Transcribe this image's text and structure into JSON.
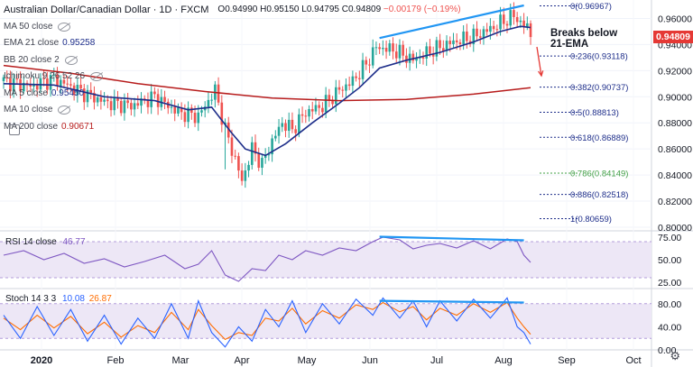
{
  "header": {
    "title": "Australian Dollar/Canadian Dollar · 1D · FXCM",
    "ohlc": "O0.94990 H0.95150 L0.94795 C0.94809",
    "change": "−0.00179 (−0.19%)"
  },
  "legend_rows": [
    {
      "label": "MA 50 close",
      "value": "",
      "color": "#434651",
      "eye": true
    },
    {
      "label": "EMA 21 close",
      "value": "0.95258",
      "color": "#1e2e8a",
      "eye": false
    },
    {
      "label": "BB 20 close 2",
      "value": "",
      "color": "#434651",
      "eye": true
    },
    {
      "label": "Ichimoku 9 26 52 26",
      "value": "",
      "color": "#434651",
      "eye": true
    },
    {
      "label": "MA 5 close",
      "value": "0.95450",
      "color": "#1e2e8a",
      "eye": false
    },
    {
      "label": "MA 10 close",
      "value": "",
      "color": "#434651",
      "eye": true
    },
    {
      "label": "MA 200 close",
      "value": "0.90671",
      "color": "#b71c1c",
      "eye": false
    }
  ],
  "last_price": "0.94809",
  "annotation": "Breaks below\n21-EMA",
  "rsi": {
    "label": "RSI 14 close",
    "value": "46.77"
  },
  "stoch": {
    "label": "Stoch 14 3 3",
    "k": "10.08",
    "d": "26.87"
  },
  "colors": {
    "up": "#26a69a",
    "down": "#ef5350",
    "ema21": "#1e2e8a",
    "ma200": "#b71c1c",
    "trend": "#2196f3",
    "arrow": "#e53935",
    "rsi": "#7e57c2",
    "band": "#ede7f6",
    "stoch_k": "#2962ff",
    "stoch_d": "#ff6d00"
  },
  "chart_data": {
    "type": "candlestick",
    "price_axis": {
      "ticks": [
        "0.96000",
        "0.94000",
        "0.92000",
        "0.90000",
        "0.88000",
        "0.86000",
        "0.84000",
        "0.82000",
        "0.80000"
      ],
      "range": [
        0.8,
        0.97
      ]
    },
    "x_ticks": [
      "2020",
      "Feb",
      "Mar",
      "Apr",
      "May",
      "Jun",
      "Jul",
      "Aug",
      "Sep",
      "Oct"
    ],
    "fib_levels": [
      {
        "label": "0(0.96967)",
        "value": 0.96967
      },
      {
        "label": "0.236(0.93118)",
        "value": 0.93118
      },
      {
        "label": "0.382(0.90737)",
        "value": 0.90737
      },
      {
        "label": "0.5(0.88813)",
        "value": 0.88813
      },
      {
        "label": "0.618(0.86889)",
        "value": 0.86889
      },
      {
        "label": "0.786(0.84149)",
        "value": 0.84149
      },
      {
        "label": "0.886(0.82518)",
        "value": 0.82518
      },
      {
        "label": "1(0.80659)",
        "value": 0.80659
      }
    ],
    "close_path": [
      [
        0,
        0.912
      ],
      [
        8,
        0.908
      ],
      [
        15,
        0.914
      ],
      [
        22,
        0.905
      ],
      [
        30,
        0.896
      ],
      [
        38,
        0.893
      ],
      [
        45,
        0.9
      ],
      [
        52,
        0.888
      ],
      [
        58,
        0.885
      ],
      [
        63,
        0.905
      ],
      [
        66,
        0.875
      ],
      [
        69,
        0.852
      ],
      [
        71,
        0.835
      ],
      [
        74,
        0.86
      ],
      [
        77,
        0.848
      ],
      [
        80,
        0.866
      ],
      [
        83,
        0.88
      ],
      [
        86,
        0.875
      ],
      [
        90,
        0.888
      ],
      [
        95,
        0.893
      ],
      [
        100,
        0.905
      ],
      [
        104,
        0.912
      ],
      [
        108,
        0.925
      ],
      [
        111,
        0.938
      ],
      [
        116,
        0.936
      ],
      [
        122,
        0.928
      ],
      [
        128,
        0.936
      ],
      [
        134,
        0.942
      ],
      [
        140,
        0.946
      ],
      [
        145,
        0.952
      ],
      [
        149,
        0.958
      ],
      [
        152,
        0.962
      ],
      [
        154,
        0.957
      ],
      [
        156,
        0.953
      ],
      [
        157,
        0.948
      ]
    ],
    "ema21": [
      [
        0,
        0.91
      ],
      [
        15,
        0.909
      ],
      [
        30,
        0.9
      ],
      [
        45,
        0.897
      ],
      [
        55,
        0.89
      ],
      [
        62,
        0.892
      ],
      [
        68,
        0.872
      ],
      [
        72,
        0.86
      ],
      [
        78,
        0.855
      ],
      [
        84,
        0.864
      ],
      [
        92,
        0.88
      ],
      [
        100,
        0.895
      ],
      [
        106,
        0.907
      ],
      [
        112,
        0.922
      ],
      [
        120,
        0.928
      ],
      [
        130,
        0.934
      ],
      [
        140,
        0.942
      ],
      [
        148,
        0.95
      ],
      [
        154,
        0.954
      ],
      [
        157,
        0.953
      ]
    ],
    "ma200": [
      [
        0,
        0.924
      ],
      [
        20,
        0.918
      ],
      [
        40,
        0.91
      ],
      [
        60,
        0.904
      ],
      [
        80,
        0.899
      ],
      [
        100,
        0.897
      ],
      [
        120,
        0.898
      ],
      [
        140,
        0.902
      ],
      [
        157,
        0.907
      ]
    ],
    "trendlines": {
      "price": [
        [
          112,
          0.945
        ],
        [
          155,
          0.97
        ]
      ],
      "rsi": [
        [
          112,
          75.5
        ],
        [
          155,
          71.5
        ]
      ],
      "stoch": [
        [
          112,
          85
        ],
        [
          155,
          82
        ]
      ]
    },
    "rsi_axis": {
      "ticks": [
        "75.00",
        "50.00",
        "25.00"
      ],
      "band": [
        30,
        70
      ]
    },
    "rsi_path": [
      [
        0,
        55
      ],
      [
        6,
        60
      ],
      [
        12,
        50
      ],
      [
        18,
        57
      ],
      [
        24,
        46
      ],
      [
        30,
        51
      ],
      [
        36,
        42
      ],
      [
        42,
        48
      ],
      [
        48,
        55
      ],
      [
        54,
        40
      ],
      [
        58,
        45
      ],
      [
        62,
        60
      ],
      [
        66,
        33
      ],
      [
        70,
        26
      ],
      [
        74,
        40
      ],
      [
        78,
        38
      ],
      [
        82,
        55
      ],
      [
        86,
        50
      ],
      [
        90,
        60
      ],
      [
        95,
        55
      ],
      [
        100,
        63
      ],
      [
        105,
        60
      ],
      [
        110,
        70
      ],
      [
        113,
        75
      ],
      [
        118,
        72
      ],
      [
        122,
        62
      ],
      [
        126,
        66
      ],
      [
        130,
        68
      ],
      [
        135,
        63
      ],
      [
        140,
        71
      ],
      [
        145,
        62
      ],
      [
        150,
        73
      ],
      [
        153,
        70
      ],
      [
        155,
        55
      ],
      [
        157,
        47
      ]
    ],
    "stoch_axis": {
      "ticks": [
        "80.00",
        "40.00",
        "0.00"
      ],
      "band": [
        20,
        80
      ]
    },
    "stoch_k": [
      [
        0,
        60
      ],
      [
        5,
        20
      ],
      [
        10,
        75
      ],
      [
        15,
        25
      ],
      [
        20,
        70
      ],
      [
        25,
        15
      ],
      [
        30,
        60
      ],
      [
        35,
        10
      ],
      [
        40,
        55
      ],
      [
        45,
        20
      ],
      [
        50,
        80
      ],
      [
        55,
        20
      ],
      [
        58,
        85
      ],
      [
        62,
        30
      ],
      [
        66,
        5
      ],
      [
        70,
        40
      ],
      [
        74,
        15
      ],
      [
        78,
        70
      ],
      [
        82,
        40
      ],
      [
        86,
        85
      ],
      [
        90,
        30
      ],
      [
        95,
        80
      ],
      [
        100,
        45
      ],
      [
        105,
        88
      ],
      [
        110,
        60
      ],
      [
        113,
        90
      ],
      [
        118,
        55
      ],
      [
        122,
        85
      ],
      [
        126,
        40
      ],
      [
        130,
        85
      ],
      [
        135,
        50
      ],
      [
        140,
        88
      ],
      [
        145,
        55
      ],
      [
        150,
        90
      ],
      [
        153,
        40
      ],
      [
        155,
        30
      ],
      [
        157,
        10
      ]
    ],
    "stoch_d": [
      [
        0,
        55
      ],
      [
        5,
        35
      ],
      [
        10,
        60
      ],
      [
        15,
        38
      ],
      [
        20,
        58
      ],
      [
        25,
        28
      ],
      [
        30,
        48
      ],
      [
        35,
        22
      ],
      [
        40,
        42
      ],
      [
        45,
        30
      ],
      [
        50,
        65
      ],
      [
        55,
        35
      ],
      [
        58,
        70
      ],
      [
        62,
        42
      ],
      [
        66,
        18
      ],
      [
        70,
        30
      ],
      [
        74,
        25
      ],
      [
        78,
        55
      ],
      [
        82,
        50
      ],
      [
        86,
        72
      ],
      [
        90,
        45
      ],
      [
        95,
        68
      ],
      [
        100,
        55
      ],
      [
        105,
        78
      ],
      [
        110,
        70
      ],
      [
        113,
        82
      ],
      [
        118,
        66
      ],
      [
        122,
        75
      ],
      [
        126,
        52
      ],
      [
        130,
        72
      ],
      [
        135,
        60
      ],
      [
        140,
        80
      ],
      [
        145,
        65
      ],
      [
        150,
        82
      ],
      [
        153,
        55
      ],
      [
        155,
        40
      ],
      [
        157,
        27
      ]
    ]
  }
}
